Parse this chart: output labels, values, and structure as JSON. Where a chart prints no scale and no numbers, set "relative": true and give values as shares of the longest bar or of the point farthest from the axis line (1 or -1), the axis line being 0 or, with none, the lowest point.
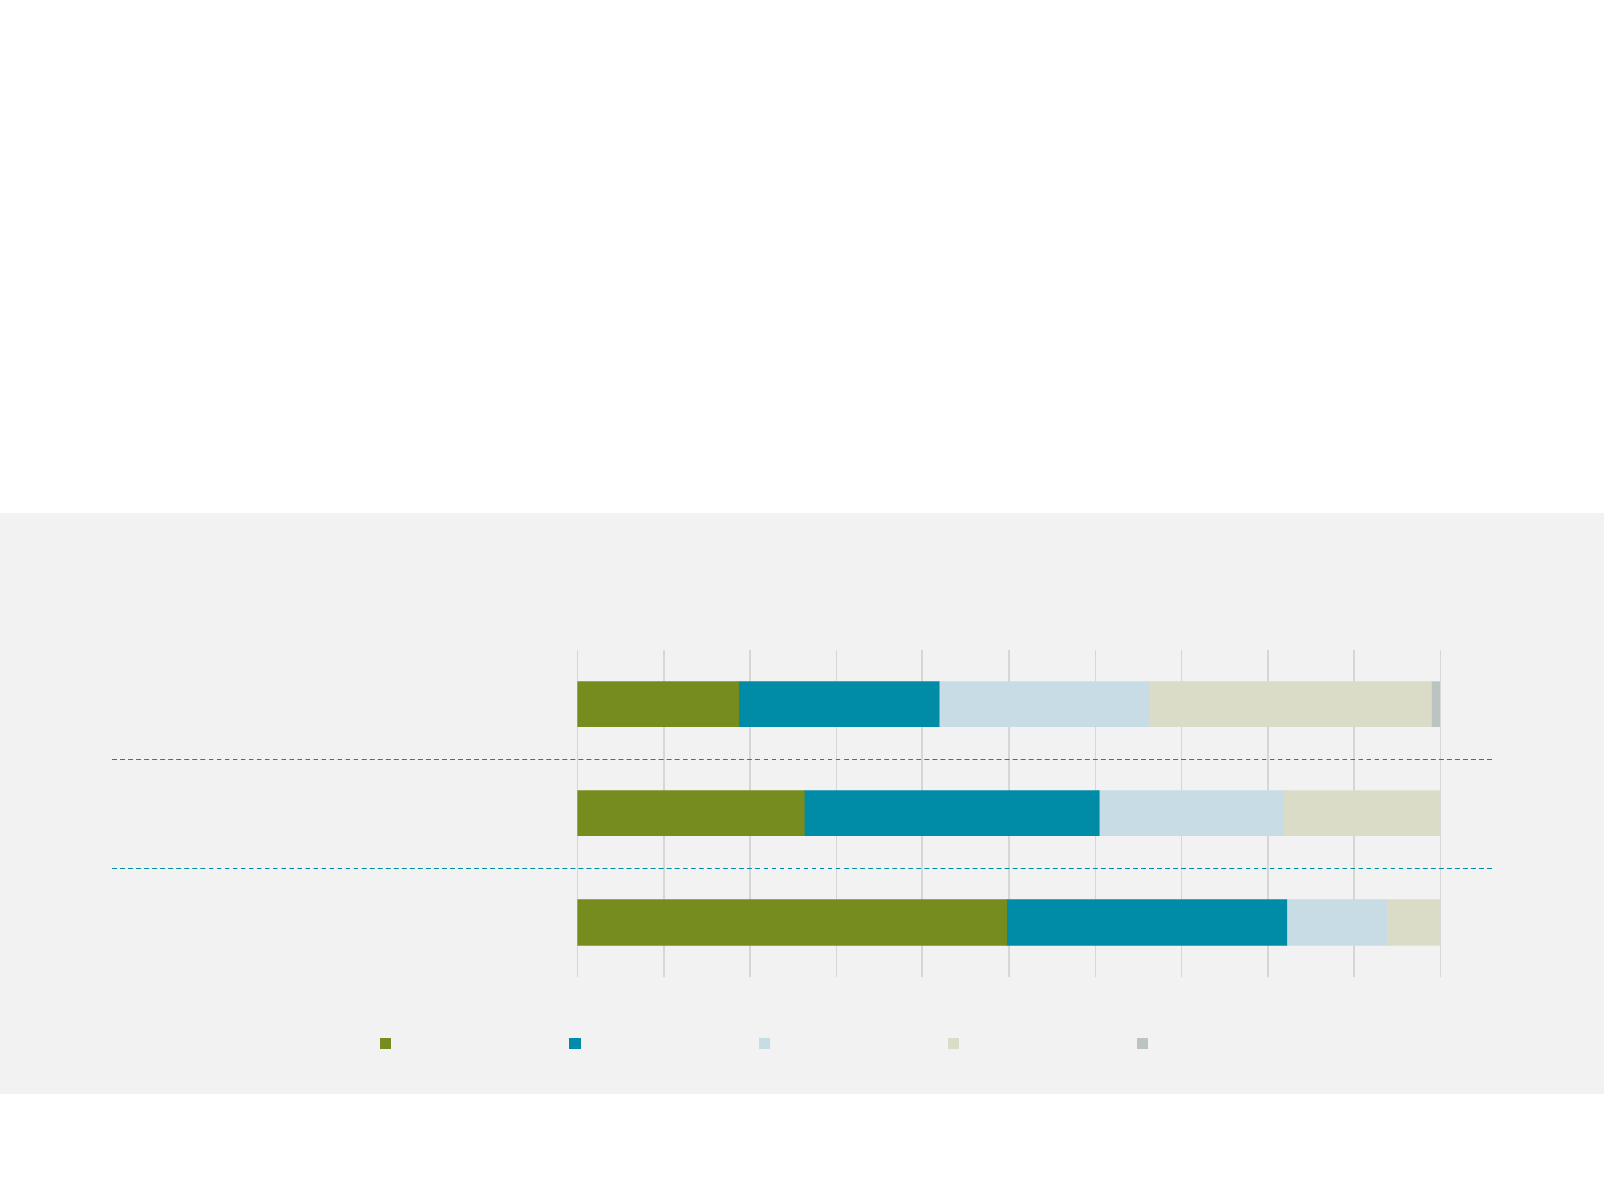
{
  "chart_data": {
    "type": "bar",
    "orientation": "horizontal",
    "stacked": true,
    "relative": true,
    "grid": "x",
    "categories": [
      null,
      null,
      null
    ],
    "series": [
      {
        "color": "#778c1f",
        "values": [
          0.187,
          0.263,
          0.497
        ]
      },
      {
        "color": "#008ca7",
        "values": [
          0.232,
          0.341,
          0.325
        ]
      },
      {
        "color": "#c7dce4",
        "values": [
          0.243,
          0.214,
          0.116
        ]
      },
      {
        "color": "#dadcc8",
        "values": [
          0.327,
          0.182,
          0.062
        ]
      },
      {
        "color": "#bcc4c1",
        "values": [
          0.011,
          0,
          0
        ]
      }
    ]
  }
}
